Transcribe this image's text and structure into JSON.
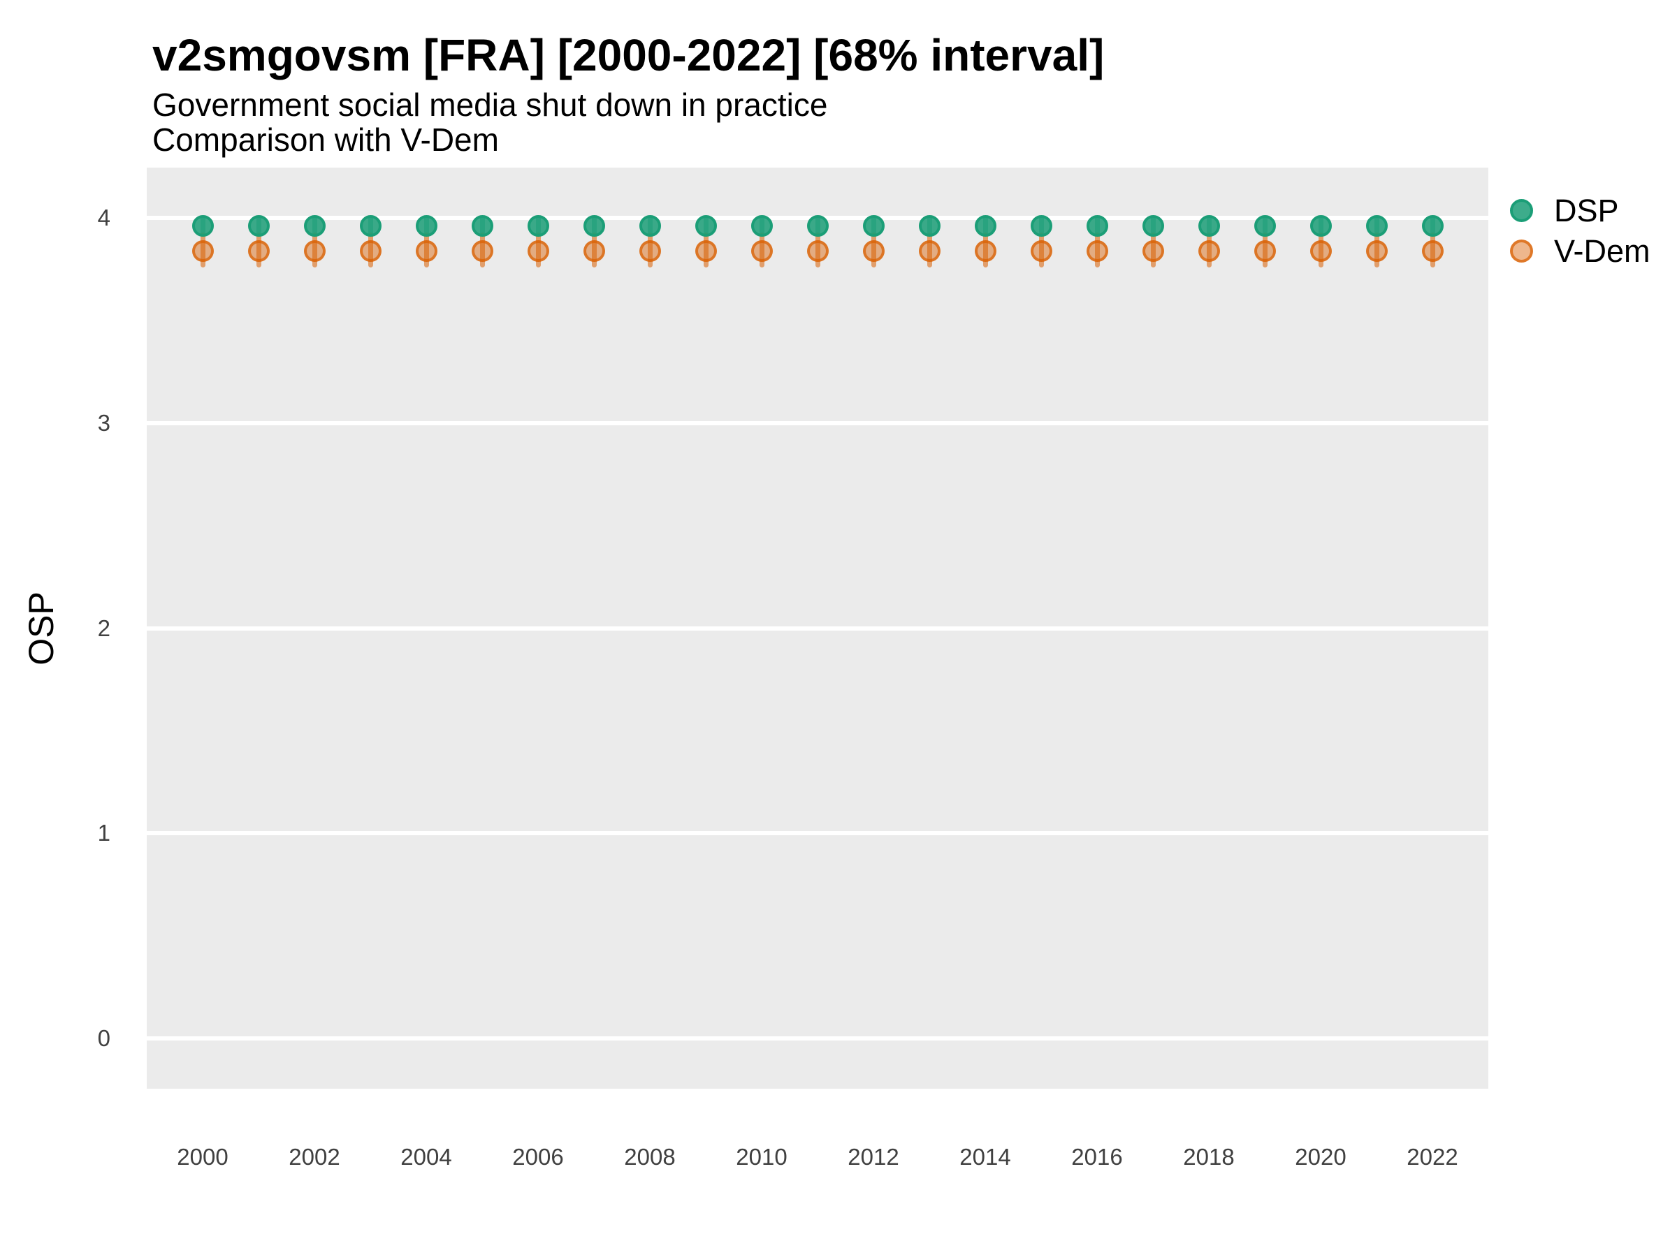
{
  "colors": {
    "dsp_green": "#1B9E77",
    "vdem_orange": "#D95F02",
    "panel_background": "#EBEBEB",
    "gridline_white": "#FFFFFF",
    "title_text": "#000000",
    "tick_text": "#404040"
  },
  "legend": {
    "position": "right-top",
    "entries": [
      "DSP",
      "V-Dem"
    ]
  },
  "chart_data": {
    "type": "scatter",
    "title": "v2smgovsm [FRA] [2000-2022] [68% interval]",
    "subtitle": "Government social media shut down in practice",
    "comparison_note": "Comparison with V-Dem",
    "xlabel": "",
    "ylabel": "OSP",
    "interval": "68%",
    "grid": "horizontal major gridlines only, white on gray panel",
    "legend_position": "right",
    "ylim": [
      -0.25,
      4.25
    ],
    "y_ticks": [
      0,
      1,
      2,
      3,
      4
    ],
    "x_tick_labels": [
      "2000",
      "2002",
      "2004",
      "2006",
      "2008",
      "2010",
      "2012",
      "2014",
      "2016",
      "2018",
      "2020",
      "2022"
    ],
    "x": [
      2000,
      2001,
      2002,
      2003,
      2004,
      2005,
      2006,
      2007,
      2008,
      2009,
      2010,
      2011,
      2012,
      2013,
      2014,
      2015,
      2016,
      2017,
      2018,
      2019,
      2020,
      2021,
      2022
    ],
    "series": [
      {
        "name": "DSP",
        "color": "#1B9E77",
        "values": [
          3.96,
          3.96,
          3.96,
          3.96,
          3.96,
          3.96,
          3.96,
          3.96,
          3.96,
          3.96,
          3.96,
          3.96,
          3.96,
          3.96,
          3.96,
          3.96,
          3.96,
          3.96,
          3.96,
          3.96,
          3.96,
          3.96,
          3.96
        ],
        "interval_low": [
          3.91,
          3.91,
          3.91,
          3.91,
          3.91,
          3.91,
          3.91,
          3.91,
          3.91,
          3.91,
          3.91,
          3.91,
          3.91,
          3.91,
          3.91,
          3.91,
          3.91,
          3.91,
          3.91,
          3.91,
          3.91,
          3.91,
          3.91
        ],
        "interval_high": [
          4.01,
          4.01,
          4.01,
          4.01,
          4.01,
          4.01,
          4.01,
          4.01,
          4.01,
          4.01,
          4.01,
          4.01,
          4.01,
          4.01,
          4.01,
          4.01,
          4.01,
          4.01,
          4.01,
          4.01,
          4.01,
          4.01,
          4.01
        ]
      },
      {
        "name": "V-Dem",
        "color": "#D95F02",
        "values": [
          3.84,
          3.84,
          3.84,
          3.84,
          3.84,
          3.84,
          3.84,
          3.84,
          3.84,
          3.84,
          3.84,
          3.84,
          3.84,
          3.84,
          3.84,
          3.84,
          3.84,
          3.84,
          3.84,
          3.84,
          3.84,
          3.84,
          3.84
        ],
        "interval_low": [
          3.76,
          3.76,
          3.76,
          3.76,
          3.76,
          3.76,
          3.76,
          3.76,
          3.76,
          3.76,
          3.76,
          3.76,
          3.76,
          3.76,
          3.76,
          3.76,
          3.76,
          3.76,
          3.76,
          3.76,
          3.76,
          3.76,
          3.76
        ],
        "interval_high": [
          3.93,
          3.93,
          3.93,
          3.93,
          3.93,
          3.93,
          3.93,
          3.93,
          3.93,
          3.93,
          3.93,
          3.93,
          3.93,
          3.93,
          3.93,
          3.93,
          3.93,
          3.93,
          3.93,
          3.93,
          3.93,
          3.93,
          3.93
        ]
      }
    ]
  }
}
